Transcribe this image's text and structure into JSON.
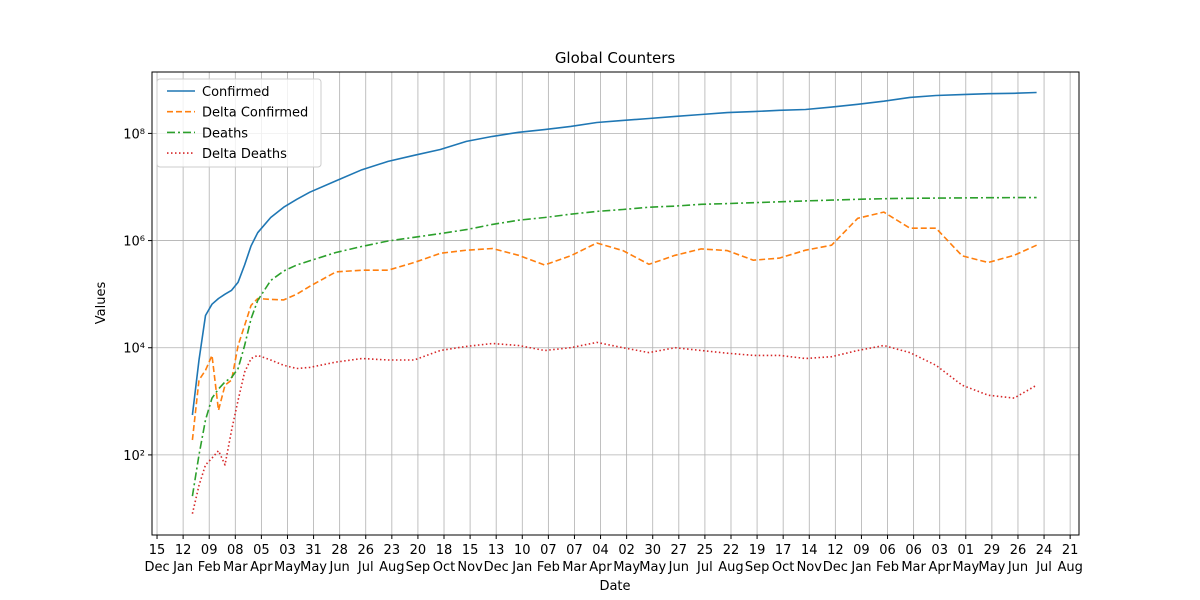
{
  "chart_data": {
    "type": "line",
    "title": "Global Counters",
    "x_label": "Date",
    "y_label": "Values",
    "log_scale": true,
    "grid": true,
    "legend_position": "upper-left",
    "x": [
      38,
      45,
      52,
      59,
      66,
      73,
      80,
      87,
      94,
      101,
      108,
      122,
      136,
      150,
      164,
      192,
      220,
      248,
      276,
      304,
      332,
      360,
      388,
      416,
      444,
      472,
      500,
      528,
      556,
      584,
      612,
      640,
      668,
      696,
      724,
      752,
      780,
      808,
      836,
      864,
      892,
      920,
      944
    ],
    "xlim": [
      -5.4,
      989.5
    ],
    "xticks": [
      {
        "value": 0,
        "label": "15\nDec"
      },
      {
        "value": 28,
        "label": "12\nJan"
      },
      {
        "value": 56,
        "label": "09\nFeb"
      },
      {
        "value": 84,
        "label": "08\nMar"
      },
      {
        "value": 112,
        "label": "05\nApr"
      },
      {
        "value": 140,
        "label": "03\nMay"
      },
      {
        "value": 168,
        "label": "31\nMay"
      },
      {
        "value": 196,
        "label": "28\nJun"
      },
      {
        "value": 224,
        "label": "26\nJul"
      },
      {
        "value": 252,
        "label": "23\nAug"
      },
      {
        "value": 280,
        "label": "20\nSep"
      },
      {
        "value": 308,
        "label": "18\nOct"
      },
      {
        "value": 336,
        "label": "15\nNov"
      },
      {
        "value": 364,
        "label": "13\nDec"
      },
      {
        "value": 392,
        "label": "10\nJan"
      },
      {
        "value": 420,
        "label": "07\nFeb"
      },
      {
        "value": 448,
        "label": "07\nMar"
      },
      {
        "value": 476,
        "label": "04\nApr"
      },
      {
        "value": 504,
        "label": "02\nMay"
      },
      {
        "value": 532,
        "label": "30\nMay"
      },
      {
        "value": 560,
        "label": "27\nJun"
      },
      {
        "value": 588,
        "label": "25\nJul"
      },
      {
        "value": 616,
        "label": "22\nAug"
      },
      {
        "value": 644,
        "label": "19\nSep"
      },
      {
        "value": 672,
        "label": "17\nOct"
      },
      {
        "value": 700,
        "label": "14\nNov"
      },
      {
        "value": 728,
        "label": "12\nDec"
      },
      {
        "value": 756,
        "label": "09\nJan"
      },
      {
        "value": 784,
        "label": "06\nFeb"
      },
      {
        "value": 812,
        "label": "06\nMar"
      },
      {
        "value": 840,
        "label": "03\nApr"
      },
      {
        "value": 868,
        "label": "01\nMay"
      },
      {
        "value": 896,
        "label": "29\nMay"
      },
      {
        "value": 924,
        "label": "26\nJun"
      },
      {
        "value": 952,
        "label": "24\nJul"
      },
      {
        "value": 980,
        "label": "21\nAug"
      }
    ],
    "ylim": [
      3.2,
      1400000000
    ],
    "yticks": [
      {
        "value": 100,
        "label": "10²"
      },
      {
        "value": 10000,
        "label": "10⁴"
      },
      {
        "value": 1000000,
        "label": "10⁶"
      },
      {
        "value": 100000000,
        "label": "10⁸"
      }
    ],
    "series": [
      {
        "name": "Confirmed",
        "color": "#1f77b4",
        "linestyle": "solid",
        "values": [
          555,
          5900,
          40000,
          65000,
          83000,
          100000,
          118000,
          167000,
          350000,
          800000,
          1400000,
          2700000,
          4200000,
          5900000,
          8000000,
          13000000,
          21000000,
          30000000,
          39000000,
          50000000,
          71000000,
          88000000,
          105000000,
          118000000,
          135000000,
          160000000,
          175000000,
          190000000,
          208000000,
          225000000,
          245000000,
          255000000,
          270000000,
          280000000,
          310000000,
          350000000,
          400000000,
          470000000,
          510000000,
          530000000,
          550000000,
          560000000,
          580000000
        ]
      },
      {
        "name": "Delta Confirmed",
        "color": "#ff7f0e",
        "linestyle": "dashed",
        "values": [
          190,
          2500,
          3800,
          7200,
          680,
          2000,
          2500,
          11000,
          26000,
          62000,
          83000,
          80000,
          78000,
          100000,
          140000,
          260000,
          280000,
          280000,
          390000,
          580000,
          660000,
          710000,
          530000,
          350000,
          520000,
          900000,
          650000,
          360000,
          530000,
          700000,
          650000,
          430000,
          470000,
          660000,
          820000,
          2600000,
          3400000,
          1700000,
          1700000,
          520000,
          390000,
          530000,
          820000
        ]
      },
      {
        "name": "Deaths",
        "color": "#2ca02c",
        "linestyle": "dashdot",
        "values": [
          17,
          100,
          450,
          1150,
          1700,
          2300,
          2800,
          4100,
          11000,
          35000,
          76000,
          180000,
          270000,
          350000,
          420000,
          600000,
          780000,
          980000,
          1150000,
          1350000,
          1600000,
          2000000,
          2400000,
          2700000,
          3100000,
          3500000,
          3800000,
          4200000,
          4400000,
          4750000,
          4900000,
          5100000,
          5300000,
          5500000,
          5700000,
          5900000,
          6050000,
          6150000,
          6200000,
          6250000,
          6300000,
          6330000,
          6350000
        ]
      },
      {
        "name": "Delta Deaths",
        "color": "#d62728",
        "linestyle": "dotted",
        "values": [
          8,
          27,
          65,
          87,
          120,
          65,
          290,
          1050,
          3500,
          6300,
          7200,
          5900,
          4700,
          4100,
          4300,
          5400,
          6300,
          5900,
          5900,
          8900,
          10600,
          12000,
          11000,
          8900,
          10000,
          12600,
          10000,
          8100,
          10000,
          8900,
          7900,
          7200,
          7200,
          6300,
          6800,
          8900,
          11000,
          8100,
          4700,
          2000,
          1300,
          1150,
          2000
        ]
      }
    ]
  }
}
